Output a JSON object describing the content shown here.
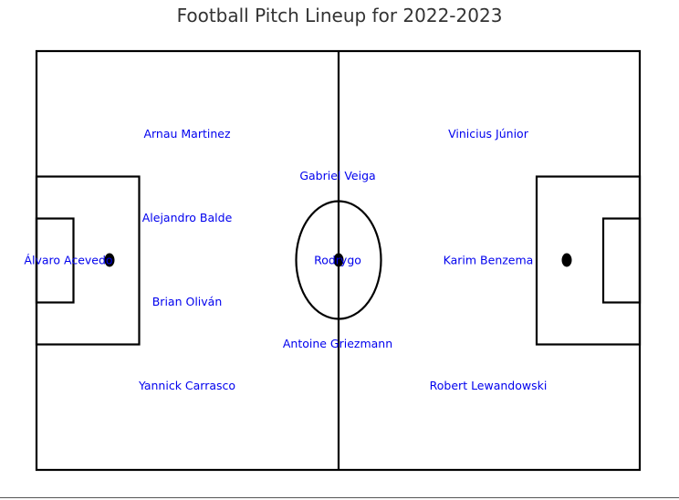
{
  "title": "Football Pitch Lineup for 2022-2023",
  "colors": {
    "line": "#000000",
    "label": "#0000ee",
    "background": "#ffffff"
  },
  "players": [
    {
      "name": "Álvaro Acevedo",
      "slot": "gk"
    },
    {
      "name": "Arnau Martinez",
      "slot": "def-1"
    },
    {
      "name": "Alejandro Balde",
      "slot": "def-2"
    },
    {
      "name": "Brian Oliván",
      "slot": "def-3"
    },
    {
      "name": "Yannick Carrasco",
      "slot": "def-4"
    },
    {
      "name": "Gabriel Veiga",
      "slot": "mid-1"
    },
    {
      "name": "Rodrygo",
      "slot": "mid-2"
    },
    {
      "name": "Antoine Griezmann",
      "slot": "mid-3"
    },
    {
      "name": "Vinicius Júnior",
      "slot": "fwd-1"
    },
    {
      "name": "Karim Benzema",
      "slot": "fwd-2"
    },
    {
      "name": "Robert Lewandowski",
      "slot": "fwd-3"
    }
  ]
}
